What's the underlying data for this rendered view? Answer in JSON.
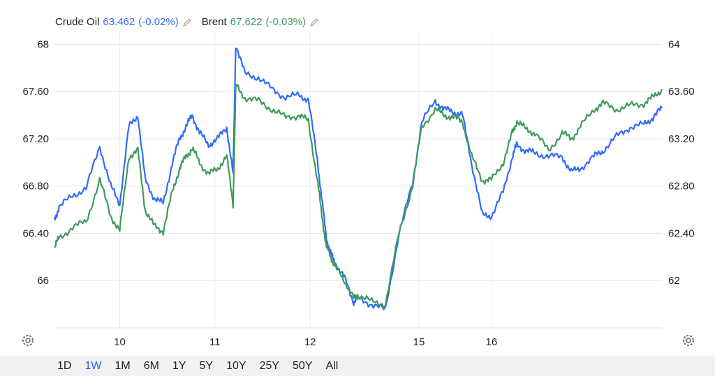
{
  "legend": [
    {
      "name": "Crude Oil",
      "value": "63.462",
      "change": "(-0.02%)",
      "color": "#2f6bff"
    },
    {
      "name": "Brent",
      "value": "67.622",
      "change": "(-0.03%)",
      "color": "#3f9a5a"
    }
  ],
  "icons": {
    "edit": "pencil-icon",
    "settings": "gear-icon"
  },
  "range_tabs": [
    {
      "label": "1D",
      "active": false
    },
    {
      "label": "1W",
      "active": true
    },
    {
      "label": "1M",
      "active": false
    },
    {
      "label": "6M",
      "active": false
    },
    {
      "label": "1Y",
      "active": false
    },
    {
      "label": "5Y",
      "active": false
    },
    {
      "label": "10Y",
      "active": false
    },
    {
      "label": "25Y",
      "active": false
    },
    {
      "label": "50Y",
      "active": false
    },
    {
      "label": "All",
      "active": false
    }
  ],
  "chart_data": {
    "type": "line",
    "x_ticks": [
      "10",
      "11",
      "12",
      "15",
      "16"
    ],
    "left_axis": {
      "ticks": [
        "66",
        "66.40",
        "66.80",
        "67.20",
        "67.60",
        "68"
      ],
      "ylim": [
        65.6,
        68.05
      ]
    },
    "right_axis": {
      "ticks": [
        "62",
        "62.40",
        "62.80",
        "63.20",
        "63.60",
        "64"
      ],
      "ylim": [
        61.6,
        64.05
      ]
    },
    "grid": true,
    "series": [
      {
        "name": "Crude Oil",
        "axis": "right",
        "color": "#2f6bff",
        "x": [
          0,
          0.05,
          0.2,
          0.35,
          0.5,
          0.62,
          0.72,
          0.82,
          0.92,
          1,
          1.1,
          1.2,
          1.3,
          1.38,
          1.45,
          1.52,
          1.6,
          1.7,
          1.8,
          1.9,
          1.97,
          2,
          2.1,
          2.25,
          2.4,
          2.55,
          2.7,
          2.8,
          2.9,
          2.95,
          3,
          3.05,
          3.1,
          3.2,
          3.3,
          3.35,
          3.5,
          3.65,
          3.8,
          3.95,
          4.05,
          4.2,
          4.3,
          4.4,
          4.5,
          4.6,
          4.72,
          4.82,
          4.95,
          5.05,
          5.1,
          5.2,
          5.3,
          5.45,
          5.6,
          5.7,
          5.8,
          5.95,
          6.05,
          6.2,
          6.35,
          6.5,
          6.6,
          6.7
        ],
        "y": [
          62.52,
          62.62,
          62.72,
          62.78,
          63.14,
          62.8,
          62.65,
          63.3,
          63.4,
          62.85,
          62.7,
          62.65,
          63.0,
          63.2,
          63.3,
          63.4,
          63.25,
          63.15,
          63.2,
          63.3,
          62.9,
          64.0,
          63.75,
          63.72,
          63.62,
          63.55,
          63.57,
          63.53,
          63.02,
          62.68,
          62.36,
          62.22,
          62.14,
          62.02,
          61.82,
          61.85,
          61.8,
          61.75,
          62.4,
          62.82,
          63.34,
          63.52,
          63.45,
          63.43,
          63.4,
          63.0,
          62.55,
          62.55,
          62.75,
          63.05,
          63.15,
          63.1,
          63.08,
          63.05,
          63.05,
          62.92,
          62.95,
          63.05,
          63.1,
          63.22,
          63.3,
          63.32,
          63.38,
          63.46
        ]
      },
      {
        "name": "Brent",
        "axis": "left",
        "color": "#3f9a5a",
        "x": [
          0,
          0.05,
          0.2,
          0.35,
          0.5,
          0.62,
          0.72,
          0.82,
          0.92,
          1,
          1.1,
          1.2,
          1.3,
          1.38,
          1.45,
          1.52,
          1.6,
          1.7,
          1.8,
          1.9,
          1.97,
          2,
          2.1,
          2.25,
          2.4,
          2.55,
          2.7,
          2.8,
          2.9,
          2.95,
          3,
          3.05,
          3.1,
          3.2,
          3.3,
          3.35,
          3.5,
          3.65,
          3.8,
          3.95,
          4.05,
          4.2,
          4.3,
          4.4,
          4.5,
          4.6,
          4.72,
          4.82,
          4.95,
          5.05,
          5.1,
          5.2,
          5.3,
          5.45,
          5.6,
          5.7,
          5.8,
          5.95,
          6.05,
          6.2,
          6.35,
          6.5,
          6.6,
          6.7
        ],
        "y": [
          66.28,
          66.36,
          66.45,
          66.5,
          66.85,
          66.55,
          66.42,
          67.05,
          67.1,
          66.6,
          66.46,
          66.42,
          66.75,
          66.95,
          67.05,
          67.12,
          67.0,
          66.9,
          66.95,
          67.05,
          66.65,
          67.65,
          67.55,
          67.52,
          67.45,
          67.38,
          67.4,
          67.35,
          66.85,
          66.55,
          66.28,
          66.2,
          66.12,
          66.0,
          65.85,
          65.88,
          65.82,
          65.8,
          66.4,
          66.8,
          67.3,
          67.45,
          67.4,
          67.38,
          67.35,
          67.05,
          66.85,
          66.85,
          67.0,
          67.25,
          67.35,
          67.28,
          67.25,
          67.1,
          67.25,
          67.2,
          67.3,
          67.45,
          67.5,
          67.45,
          67.48,
          67.5,
          67.55,
          67.62
        ]
      }
    ]
  }
}
